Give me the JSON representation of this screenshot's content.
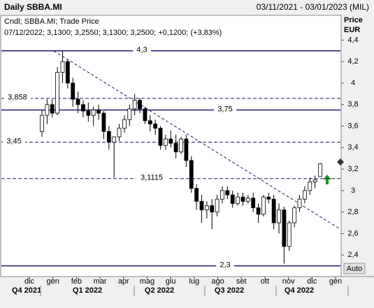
{
  "header": {
    "title": "Daily SBBA.MI",
    "range": "03/11/2021 - 03/01/2023 (MIL)"
  },
  "chart_data": {
    "type": "candlestick",
    "legend_line1": "Cndl; SBBA.MI; Trade Price",
    "legend_line2": "07/12/2022; 3,1300; 3,2550; 3,1300; 3,2500; +0,1200; (+3,83%)",
    "axis_title": "Price",
    "axis_unit": "EUR",
    "scale_button": "Auto",
    "ylim": [
      2.2,
      4.63
    ],
    "yticks": [
      {
        "value": 2.4,
        "label": "2,4"
      },
      {
        "value": 2.6,
        "label": "2,6"
      },
      {
        "value": 2.8,
        "label": "2,8"
      },
      {
        "value": 3,
        "label": "3"
      },
      {
        "value": 3.2,
        "label": "3,2"
      },
      {
        "value": 3.4,
        "label": "3,4"
      },
      {
        "value": 3.6,
        "label": "3,6"
      },
      {
        "value": 3.8,
        "label": "3,8"
      },
      {
        "value": 4,
        "label": "4"
      },
      {
        "value": 4.2,
        "label": "4,2"
      },
      {
        "value": 4.4,
        "label": "4,4"
      }
    ],
    "months": [
      "dic",
      "gen",
      "feb",
      "mar",
      "apr",
      "mag",
      "giu",
      "lug",
      "ago",
      "set",
      "ott",
      "nov",
      "dic",
      "gen"
    ],
    "quarters": [
      "Q4 2021",
      "Q1 2022",
      "Q2 2022",
      "Q3 2022",
      "Q4 2022"
    ],
    "levels": [
      {
        "value": 4.3,
        "label": "4,3",
        "style": "solid"
      },
      {
        "value": 3.858,
        "label": "3,858",
        "style": "dashed"
      },
      {
        "value": 3.75,
        "label": "3,75",
        "style": "solid"
      },
      {
        "value": 3.45,
        "label": "3,45",
        "style": "dashed"
      },
      {
        "value": 3.1115,
        "label": "3,1115",
        "style": "dashed"
      },
      {
        "value": 2.3,
        "label": "2,3",
        "style": "solid"
      }
    ],
    "trendline": {
      "start": 4.3,
      "end": 2.64
    },
    "open": [
      3.55,
      3.7,
      3.8,
      3.72,
      4.1,
      4.2,
      4.0,
      3.85,
      3.8,
      3.74,
      3.7,
      3.75,
      3.72,
      3.55,
      3.45,
      3.5,
      3.58,
      3.66,
      3.76,
      3.84,
      3.76,
      3.65,
      3.62,
      3.58,
      3.42,
      3.48,
      3.44,
      3.36,
      3.48,
      3.28,
      3.02,
      2.9,
      2.82,
      2.86,
      2.8,
      2.92,
      3.0,
      2.96,
      2.88,
      2.94,
      2.9,
      2.93,
      2.84,
      2.78,
      2.94,
      2.92,
      2.7,
      2.82,
      2.48,
      2.7,
      2.84,
      2.92,
      3.0,
      3.08,
      3.13
    ],
    "high": [
      3.75,
      3.85,
      3.85,
      4.15,
      4.3,
      4.22,
      4.05,
      3.92,
      3.84,
      3.82,
      3.78,
      3.8,
      3.74,
      3.6,
      3.5,
      3.62,
      3.7,
      3.8,
      3.9,
      3.86,
      3.78,
      3.7,
      3.66,
      3.6,
      3.52,
      3.56,
      3.52,
      3.5,
      3.52,
      3.32,
      3.06,
      2.96,
      2.9,
      2.92,
      2.96,
      3.04,
      3.04,
      3.0,
      2.98,
      2.98,
      2.96,
      2.98,
      2.88,
      2.96,
      2.98,
      2.96,
      2.88,
      2.85,
      2.72,
      2.86,
      2.96,
      3.04,
      3.12,
      3.14,
      3.255
    ],
    "low": [
      3.5,
      3.62,
      3.68,
      3.7,
      4.0,
      3.95,
      3.78,
      3.72,
      3.68,
      3.64,
      3.6,
      3.66,
      3.48,
      3.38,
      3.12,
      3.46,
      3.54,
      3.6,
      3.7,
      3.72,
      3.62,
      3.55,
      3.52,
      3.38,
      3.38,
      3.4,
      3.3,
      3.34,
      3.22,
      2.98,
      2.82,
      2.7,
      2.74,
      2.64,
      2.76,
      2.88,
      2.92,
      2.84,
      2.86,
      2.86,
      2.88,
      2.8,
      2.7,
      2.76,
      2.88,
      2.64,
      2.6,
      2.32,
      2.44,
      2.66,
      2.8,
      2.88,
      2.96,
      3.02,
      3.13
    ],
    "close": [
      3.7,
      3.8,
      3.72,
      4.1,
      4.2,
      4.0,
      3.85,
      3.8,
      3.74,
      3.7,
      3.75,
      3.72,
      3.55,
      3.45,
      3.5,
      3.58,
      3.66,
      3.76,
      3.84,
      3.76,
      3.65,
      3.62,
      3.58,
      3.42,
      3.48,
      3.44,
      3.36,
      3.48,
      3.28,
      3.02,
      2.9,
      2.82,
      2.86,
      2.8,
      2.92,
      3.0,
      2.96,
      2.88,
      2.94,
      2.9,
      2.93,
      2.84,
      2.78,
      2.94,
      2.92,
      2.7,
      2.82,
      2.48,
      2.7,
      2.84,
      2.92,
      3.0,
      3.08,
      3.1,
      3.25
    ]
  }
}
